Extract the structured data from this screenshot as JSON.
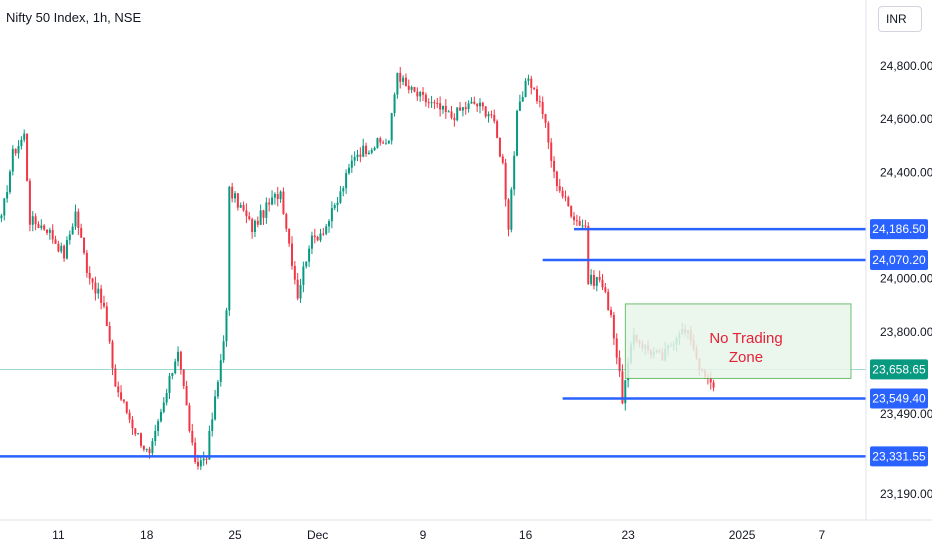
{
  "header": {
    "title": "Nifty 50 Index, 1h, NSE",
    "currency": "INR"
  },
  "colors": {
    "up": "#089981",
    "down": "#f23645",
    "level_line": "#2962ff",
    "last_price": "#089981",
    "zone_fill": "#e8f5e9",
    "zone_border": "#4caf50",
    "zone_text": "#e5213a"
  },
  "chart_data": {
    "type": "candlestick",
    "x_tick_labels": [
      "11",
      "18",
      "25",
      "Dec",
      "9",
      "16",
      "23",
      "2025",
      "7"
    ],
    "y_tick_labels": [
      "24,800.00",
      "24,600.00",
      "24,400.00",
      "24,000.00",
      "23,800.00",
      "23,490.00",
      "23,190.00"
    ],
    "y_ticks": [
      24800,
      24600,
      24400,
      24000,
      23800,
      23490,
      23190
    ],
    "ylim": [
      23135,
      24915
    ],
    "x_ticks_index": [
      20,
      51,
      82,
      111,
      148,
      184,
      220,
      260,
      288
    ],
    "n_bars": 304,
    "levels": [
      {
        "value": 24186.5,
        "label": "24,186.50",
        "x_from_index": 201
      },
      {
        "value": 24070.2,
        "label": "24,070.20",
        "x_from_index": 190
      },
      {
        "value": 23549.4,
        "label": "23,549.40",
        "x_from_index": 197
      },
      {
        "value": 23331.55,
        "label": "23,331.55",
        "x_from_index": 0
      }
    ],
    "last_price": {
      "value": 23658.65,
      "label": "23,658.65"
    },
    "zone": {
      "text_line1": "No Trading",
      "text_line2": "Zone",
      "top": 23905,
      "bottom": 23625,
      "x_start_index": 219,
      "x_end_index": 304
    },
    "anchors": [
      [
        0,
        24220
      ],
      [
        4,
        24470
      ],
      [
        8,
        24540
      ],
      [
        10,
        24220
      ],
      [
        16,
        24190
      ],
      [
        22,
        24090
      ],
      [
        26,
        24250
      ],
      [
        30,
        24040
      ],
      [
        36,
        23890
      ],
      [
        40,
        23600
      ],
      [
        46,
        23450
      ],
      [
        52,
        23330
      ],
      [
        58,
        23570
      ],
      [
        62,
        23740
      ],
      [
        66,
        23440
      ],
      [
        68,
        23290
      ],
      [
        72,
        23340
      ],
      [
        76,
        23610
      ],
      [
        79,
        23870
      ],
      [
        80,
        24330
      ],
      [
        84,
        24270
      ],
      [
        88,
        24190
      ],
      [
        94,
        24280
      ],
      [
        98,
        24330
      ],
      [
        104,
        23940
      ],
      [
        108,
        24130
      ],
      [
        114,
        24200
      ],
      [
        118,
        24290
      ],
      [
        124,
        24470
      ],
      [
        130,
        24500
      ],
      [
        136,
        24520
      ],
      [
        139,
        24780
      ],
      [
        142,
        24720
      ],
      [
        146,
        24690
      ],
      [
        152,
        24650
      ],
      [
        158,
        24610
      ],
      [
        162,
        24640
      ],
      [
        166,
        24660
      ],
      [
        172,
        24620
      ],
      [
        176,
        24430
      ],
      [
        178,
        24200
      ],
      [
        181,
        24610
      ],
      [
        185,
        24760
      ],
      [
        190,
        24630
      ],
      [
        194,
        24390
      ],
      [
        198,
        24290
      ],
      [
        202,
        24220
      ],
      [
        205,
        24200
      ],
      [
        206,
        23990
      ],
      [
        210,
        24000
      ],
      [
        214,
        23870
      ],
      [
        218,
        23550
      ],
      [
        222,
        23790
      ],
      [
        226,
        23740
      ],
      [
        232,
        23700
      ],
      [
        238,
        23810
      ],
      [
        242,
        23780
      ],
      [
        246,
        23640
      ],
      [
        250,
        23590
      ]
    ]
  }
}
